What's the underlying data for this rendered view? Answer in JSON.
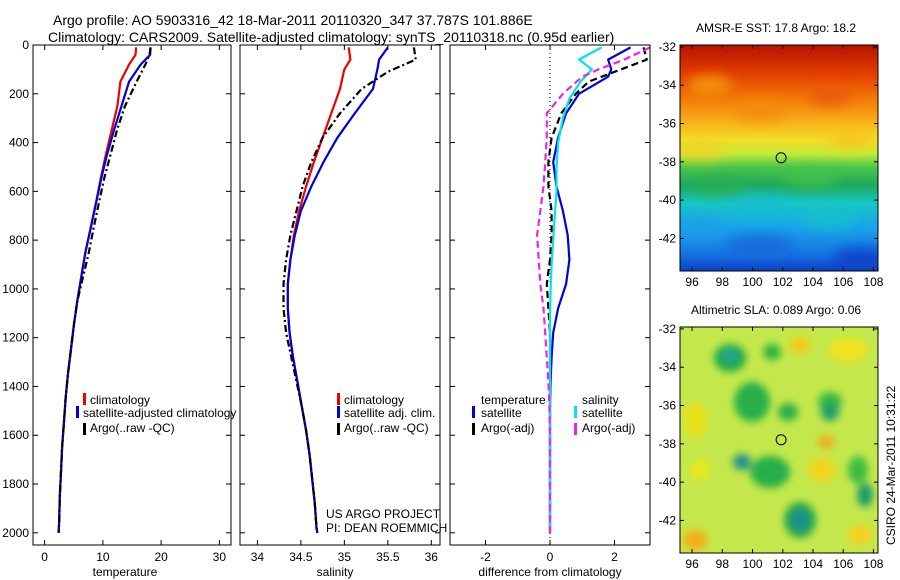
{
  "header": {
    "line1": "Argo profile: AO 5903316_42 18-Mar-2011 20110320_347 37.787S 101.886E",
    "line2": "Climatology: CARS2009. Satellite-adjusted climatology: synTS_20110318.nc (0.95d earlier)"
  },
  "colors": {
    "climatology": "#ee0000",
    "satellite": "#0000dd",
    "argo": "#000000",
    "cyan": "#00e5e5",
    "magenta": "#ee22ee"
  },
  "chart_data": [
    {
      "type": "line",
      "id": "temp",
      "xlabel": "temperature",
      "xlim": [
        -2,
        32
      ],
      "ylim": [
        0,
        2050
      ],
      "xticks": [
        0,
        10,
        20,
        30
      ],
      "yticks": [
        0,
        200,
        400,
        600,
        800,
        1000,
        1200,
        1400,
        1600,
        1800,
        2000
      ],
      "legend": [
        "climatology",
        "satellite-adjusted climatology",
        "Argo(..raw -QC)"
      ],
      "series": [
        {
          "name": "climatology",
          "color": "climatology",
          "dash": "",
          "x": [
            15.7,
            15.6,
            14.5,
            13.0,
            12.5,
            11.5,
            10.5,
            9.6,
            8.8,
            7.9,
            7.0,
            6.3,
            5.6,
            5.0,
            4.5,
            4.0,
            3.6,
            3.3,
            3.0,
            2.8,
            2.6,
            2.5,
            2.4
          ],
          "y": [
            10,
            40,
            80,
            150,
            250,
            350,
            450,
            550,
            650,
            750,
            850,
            950,
            1050,
            1150,
            1250,
            1350,
            1450,
            1550,
            1650,
            1750,
            1850,
            1950,
            2000
          ]
        },
        {
          "name": "satellite",
          "color": "satellite",
          "dash": "",
          "x": [
            18.2,
            18.1,
            16.5,
            14.5,
            13.2,
            11.9,
            10.7,
            9.7,
            8.8,
            7.9,
            7.0,
            6.3,
            5.6,
            5.0,
            4.5,
            4.0,
            3.6,
            3.3,
            3.0,
            2.8,
            2.6,
            2.5,
            2.4
          ],
          "y": [
            10,
            40,
            80,
            150,
            250,
            350,
            450,
            550,
            650,
            750,
            850,
            950,
            1050,
            1150,
            1250,
            1350,
            1450,
            1550,
            1650,
            1750,
            1850,
            1950,
            2000
          ]
        },
        {
          "name": "argo",
          "color": "argo",
          "dash": "7,3,2,3",
          "x": [
            18.2,
            18.0,
            17.3,
            15.8,
            13.8,
            12.4,
            11.3,
            10.2,
            9.3,
            8.4,
            7.6,
            6.6,
            5.6,
            5.0,
            4.5,
            4.0,
            3.6,
            3.3,
            3.0,
            2.8,
            2.6,
            2.5,
            2.4
          ],
          "y": [
            10,
            40,
            80,
            150,
            250,
            350,
            450,
            550,
            650,
            750,
            850,
            950,
            1050,
            1150,
            1250,
            1350,
            1450,
            1550,
            1650,
            1750,
            1850,
            1950,
            2000
          ]
        }
      ]
    },
    {
      "type": "line",
      "id": "sal",
      "xlabel": "salinity",
      "xlim": [
        33.8,
        36.1
      ],
      "ylim": [
        0,
        2050
      ],
      "xticks": [
        34,
        34.5,
        35,
        35.5,
        36
      ],
      "legend": [
        "climatology",
        "satellite adj. clim.",
        "Argo(..raw -QC)"
      ],
      "series": [
        {
          "name": "climatology",
          "color": "climatology",
          "dash": "",
          "x": [
            35.05,
            35.07,
            35.0,
            34.95,
            34.85,
            34.75,
            34.65,
            34.56,
            34.48,
            34.42,
            34.38,
            34.35,
            34.35,
            34.37,
            34.41,
            34.46,
            34.51,
            34.56,
            34.6,
            34.63,
            34.66,
            34.68,
            34.69
          ],
          "y": [
            10,
            60,
            100,
            180,
            280,
            380,
            480,
            580,
            680,
            780,
            880,
            980,
            1080,
            1180,
            1280,
            1380,
            1480,
            1580,
            1680,
            1780,
            1880,
            1980,
            2000
          ]
        },
        {
          "name": "satellite",
          "color": "satellite",
          "dash": "",
          "x": [
            35.5,
            35.4,
            35.38,
            35.33,
            35.12,
            34.92,
            34.76,
            34.62,
            34.5,
            34.43,
            34.38,
            34.35,
            34.35,
            34.37,
            34.41,
            34.46,
            34.51,
            34.56,
            34.6,
            34.63,
            34.66,
            34.68,
            34.69
          ],
          "y": [
            10,
            60,
            100,
            180,
            280,
            380,
            480,
            580,
            680,
            780,
            880,
            980,
            1080,
            1180,
            1280,
            1380,
            1480,
            1580,
            1680,
            1780,
            1880,
            1980,
            2000
          ]
        },
        {
          "name": "argo",
          "color": "argo",
          "dash": "7,3,2,3",
          "x": [
            35.8,
            35.82,
            35.5,
            35.2,
            34.95,
            34.75,
            34.62,
            34.52,
            34.45,
            34.38,
            34.33,
            34.3,
            34.3,
            34.33,
            34.39,
            34.45,
            34.51,
            34.56,
            34.6,
            34.63,
            34.66,
            34.68,
            34.69
          ],
          "y": [
            10,
            60,
            110,
            180,
            280,
            380,
            480,
            580,
            680,
            780,
            880,
            980,
            1080,
            1180,
            1280,
            1380,
            1480,
            1580,
            1680,
            1780,
            1880,
            1980,
            2000
          ]
        }
      ]
    },
    {
      "type": "line",
      "id": "diff",
      "xlabel": "difference from climatology",
      "xlim": [
        -3.1,
        3.1
      ],
      "ylim": [
        0,
        2050
      ],
      "xticks": [
        -2,
        0,
        2
      ],
      "legend": {
        "temperature_heading": "temperature",
        "salinity_heading": "salinity",
        "temperature_items": [
          "satellite",
          "Argo(-adj)"
        ],
        "salinity_items": [
          "satellite",
          "Argo(-adj)"
        ]
      },
      "series": [
        {
          "name": "temp-satellite",
          "color": "satellite",
          "dash": "",
          "x": [
            2.5,
            1.8,
            1.9,
            1.8,
            0.9,
            0.5,
            0.25,
            0.1,
            0.2,
            0.4,
            0.55,
            0.6,
            0.5,
            0.25,
            0.1,
            0.05,
            0.02,
            0.0,
            0.0,
            0.0,
            0.0,
            0.0
          ],
          "y": [
            10,
            60,
            100,
            130,
            200,
            280,
            380,
            480,
            580,
            680,
            780,
            880,
            980,
            1080,
            1180,
            1280,
            1380,
            1480,
            1600,
            1750,
            1900,
            2000
          ]
        },
        {
          "name": "temp-argo",
          "color": "argo",
          "dash": "7,4",
          "x": [
            2.9,
            3.0,
            2.2,
            1.2,
            0.8,
            0.35,
            0.05,
            -0.05,
            -0.05,
            0.05,
            0.05,
            0.0,
            -0.1,
            -0.05,
            0.0,
            0.0,
            0.0,
            0.0,
            0.0,
            0.0,
            0.0,
            0.0
          ],
          "y": [
            10,
            60,
            100,
            150,
            200,
            280,
            380,
            480,
            580,
            680,
            780,
            880,
            980,
            1080,
            1180,
            1280,
            1380,
            1480,
            1600,
            1750,
            1900,
            2000
          ]
        },
        {
          "name": "sal-satellite",
          "color": "cyan",
          "dash": "",
          "x": [
            1.6,
            0.9,
            1.3,
            0.95,
            0.6,
            0.4,
            0.25,
            0.2,
            0.2,
            0.15,
            0.1,
            0.05,
            0.02,
            0.0,
            0.0,
            0.0,
            0.0,
            0.0,
            0.0,
            0.0,
            0.0,
            0.0
          ],
          "y": [
            10,
            60,
            100,
            150,
            220,
            300,
            400,
            500,
            600,
            700,
            800,
            900,
            1000,
            1100,
            1200,
            1300,
            1400,
            1500,
            1600,
            1750,
            1900,
            2000
          ]
        },
        {
          "name": "sal-argo",
          "color": "magenta",
          "dash": "7,4",
          "x": [
            3.1,
            2.3,
            1.5,
            1.0,
            0.4,
            -0.1,
            -0.1,
            -0.15,
            -0.2,
            -0.3,
            -0.4,
            -0.35,
            -0.3,
            -0.2,
            -0.15,
            -0.1,
            -0.05,
            -0.02,
            0.0,
            0.0,
            0.0,
            0.0
          ],
          "y": [
            10,
            60,
            100,
            130,
            200,
            280,
            380,
            480,
            580,
            680,
            780,
            880,
            980,
            1080,
            1180,
            1280,
            1380,
            1480,
            1600,
            1750,
            1900,
            2000
          ]
        }
      ]
    },
    {
      "type": "heatmap",
      "id": "sst",
      "title": "AMSR-E SST: 17.8 Argo: 18.2",
      "xticks": [
        96,
        98,
        100,
        102,
        104,
        106,
        108
      ],
      "yticks": [
        -32,
        -34,
        -36,
        -38,
        -40,
        -42
      ],
      "xlim": [
        95.2,
        108.3
      ],
      "ylim": [
        -43.7,
        -31.9
      ],
      "marker": {
        "lon": 101.886,
        "lat": -37.787
      }
    },
    {
      "type": "heatmap",
      "id": "sla",
      "title": "Altimetric SLA: 0.089 Argo: 0.06",
      "xticks": [
        96,
        98,
        100,
        102,
        104,
        106,
        108
      ],
      "yticks": [
        -32,
        -34,
        -36,
        -38,
        -40,
        -42
      ],
      "xlim": [
        95.2,
        108.3
      ],
      "ylim": [
        -43.7,
        -31.9
      ],
      "marker": {
        "lon": 101.886,
        "lat": -37.787
      }
    }
  ],
  "project": {
    "line1": "US ARGO PROJECT",
    "line2": "PI: DEAN ROEMMICH"
  },
  "stamp": "CSIRO 24-Mar-2011 10:31:22"
}
